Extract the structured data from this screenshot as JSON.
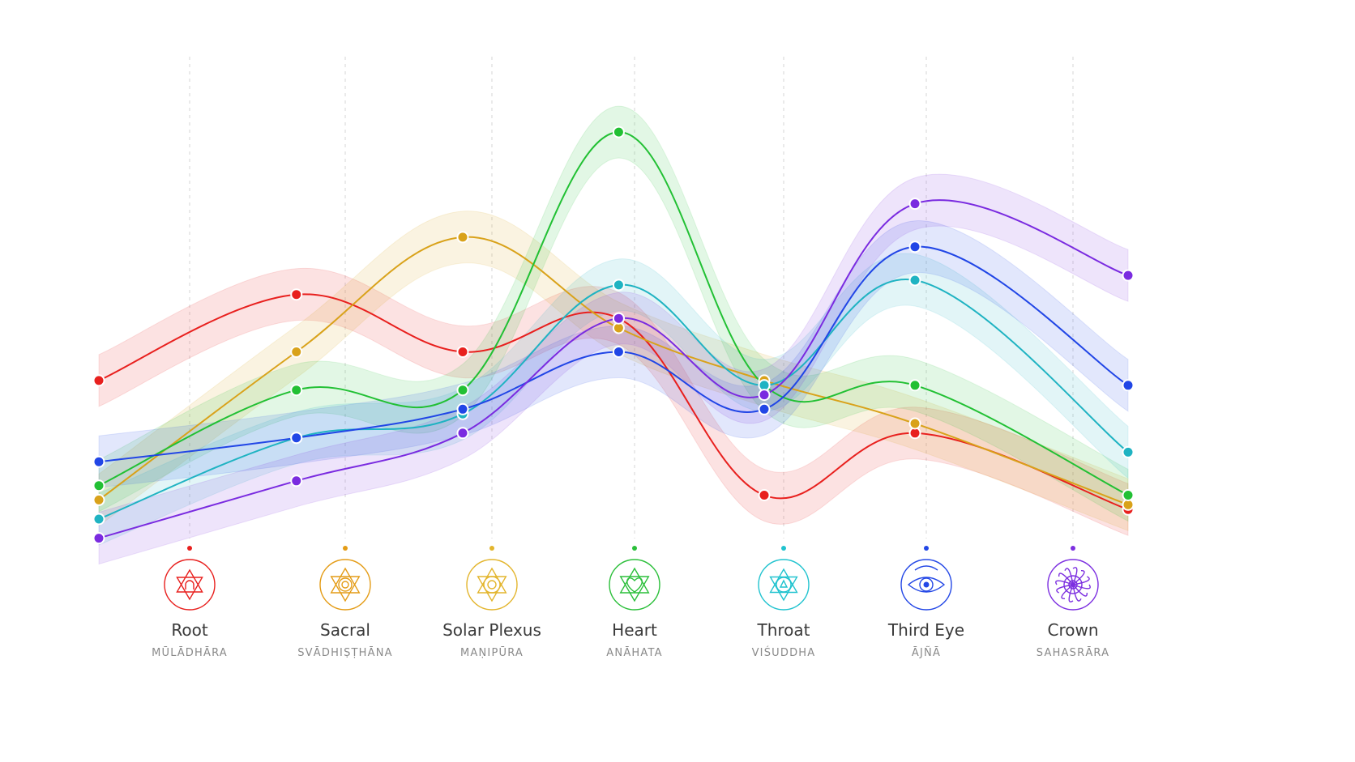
{
  "chart_data": {
    "type": "line",
    "title": "",
    "xlabel": "",
    "ylabel": "",
    "ylim": [
      0,
      100
    ],
    "grid": "vertical dashed guides at each chakra",
    "legend": "none",
    "categories": [
      {
        "name": "Root",
        "sanskrit": "MŪLĀDHĀRA",
        "color": "#e8201e",
        "icon": "root-chakra-icon"
      },
      {
        "name": "Sacral",
        "sanskrit": "SVĀDHIṢṬHĀNA",
        "color": "#e49c16",
        "icon": "sacral-chakra-icon"
      },
      {
        "name": "Solar Plexus",
        "sanskrit": "MAṆIPŪRA",
        "color": "#e3b52d",
        "icon": "solar-plexus-chakra-icon"
      },
      {
        "name": "Heart",
        "sanskrit": "ANĀHATA",
        "color": "#2bbf3a",
        "icon": "heart-chakra-icon"
      },
      {
        "name": "Throat",
        "sanskrit": "VIŚUDDHA",
        "color": "#21c3cf",
        "icon": "throat-chakra-icon"
      },
      {
        "name": "Third Eye",
        "sanskrit": "ĀJÑĀ",
        "color": "#2347e6",
        "icon": "third-eye-chakra-icon"
      },
      {
        "name": "Crown",
        "sanskrit": "SAHASRĀRA",
        "color": "#7c2fe0",
        "icon": "crown-chakra-icon"
      }
    ],
    "x": [
      0,
      1.9,
      3.5,
      5.0,
      6.4,
      7.85,
      9.9
    ],
    "series": [
      {
        "color": "#e8201e",
        "values": [
          39,
          57,
          45,
          52,
          15,
          28,
          12
        ]
      },
      {
        "color": "#d9a21a",
        "values": [
          14,
          45,
          69,
          50,
          39,
          30,
          13
        ]
      },
      {
        "color": "#22c034",
        "values": [
          17,
          37,
          37,
          91,
          38,
          38,
          15
        ]
      },
      {
        "color": "#1fb3c2",
        "values": [
          10,
          27,
          32,
          59,
          38,
          60,
          24
        ]
      },
      {
        "color": "#2146e6",
        "values": [
          22,
          27,
          33,
          45,
          33,
          67,
          38
        ]
      },
      {
        "color": "#7a2be0",
        "values": [
          6,
          18,
          28,
          52,
          36,
          76,
          61
        ]
      }
    ]
  }
}
